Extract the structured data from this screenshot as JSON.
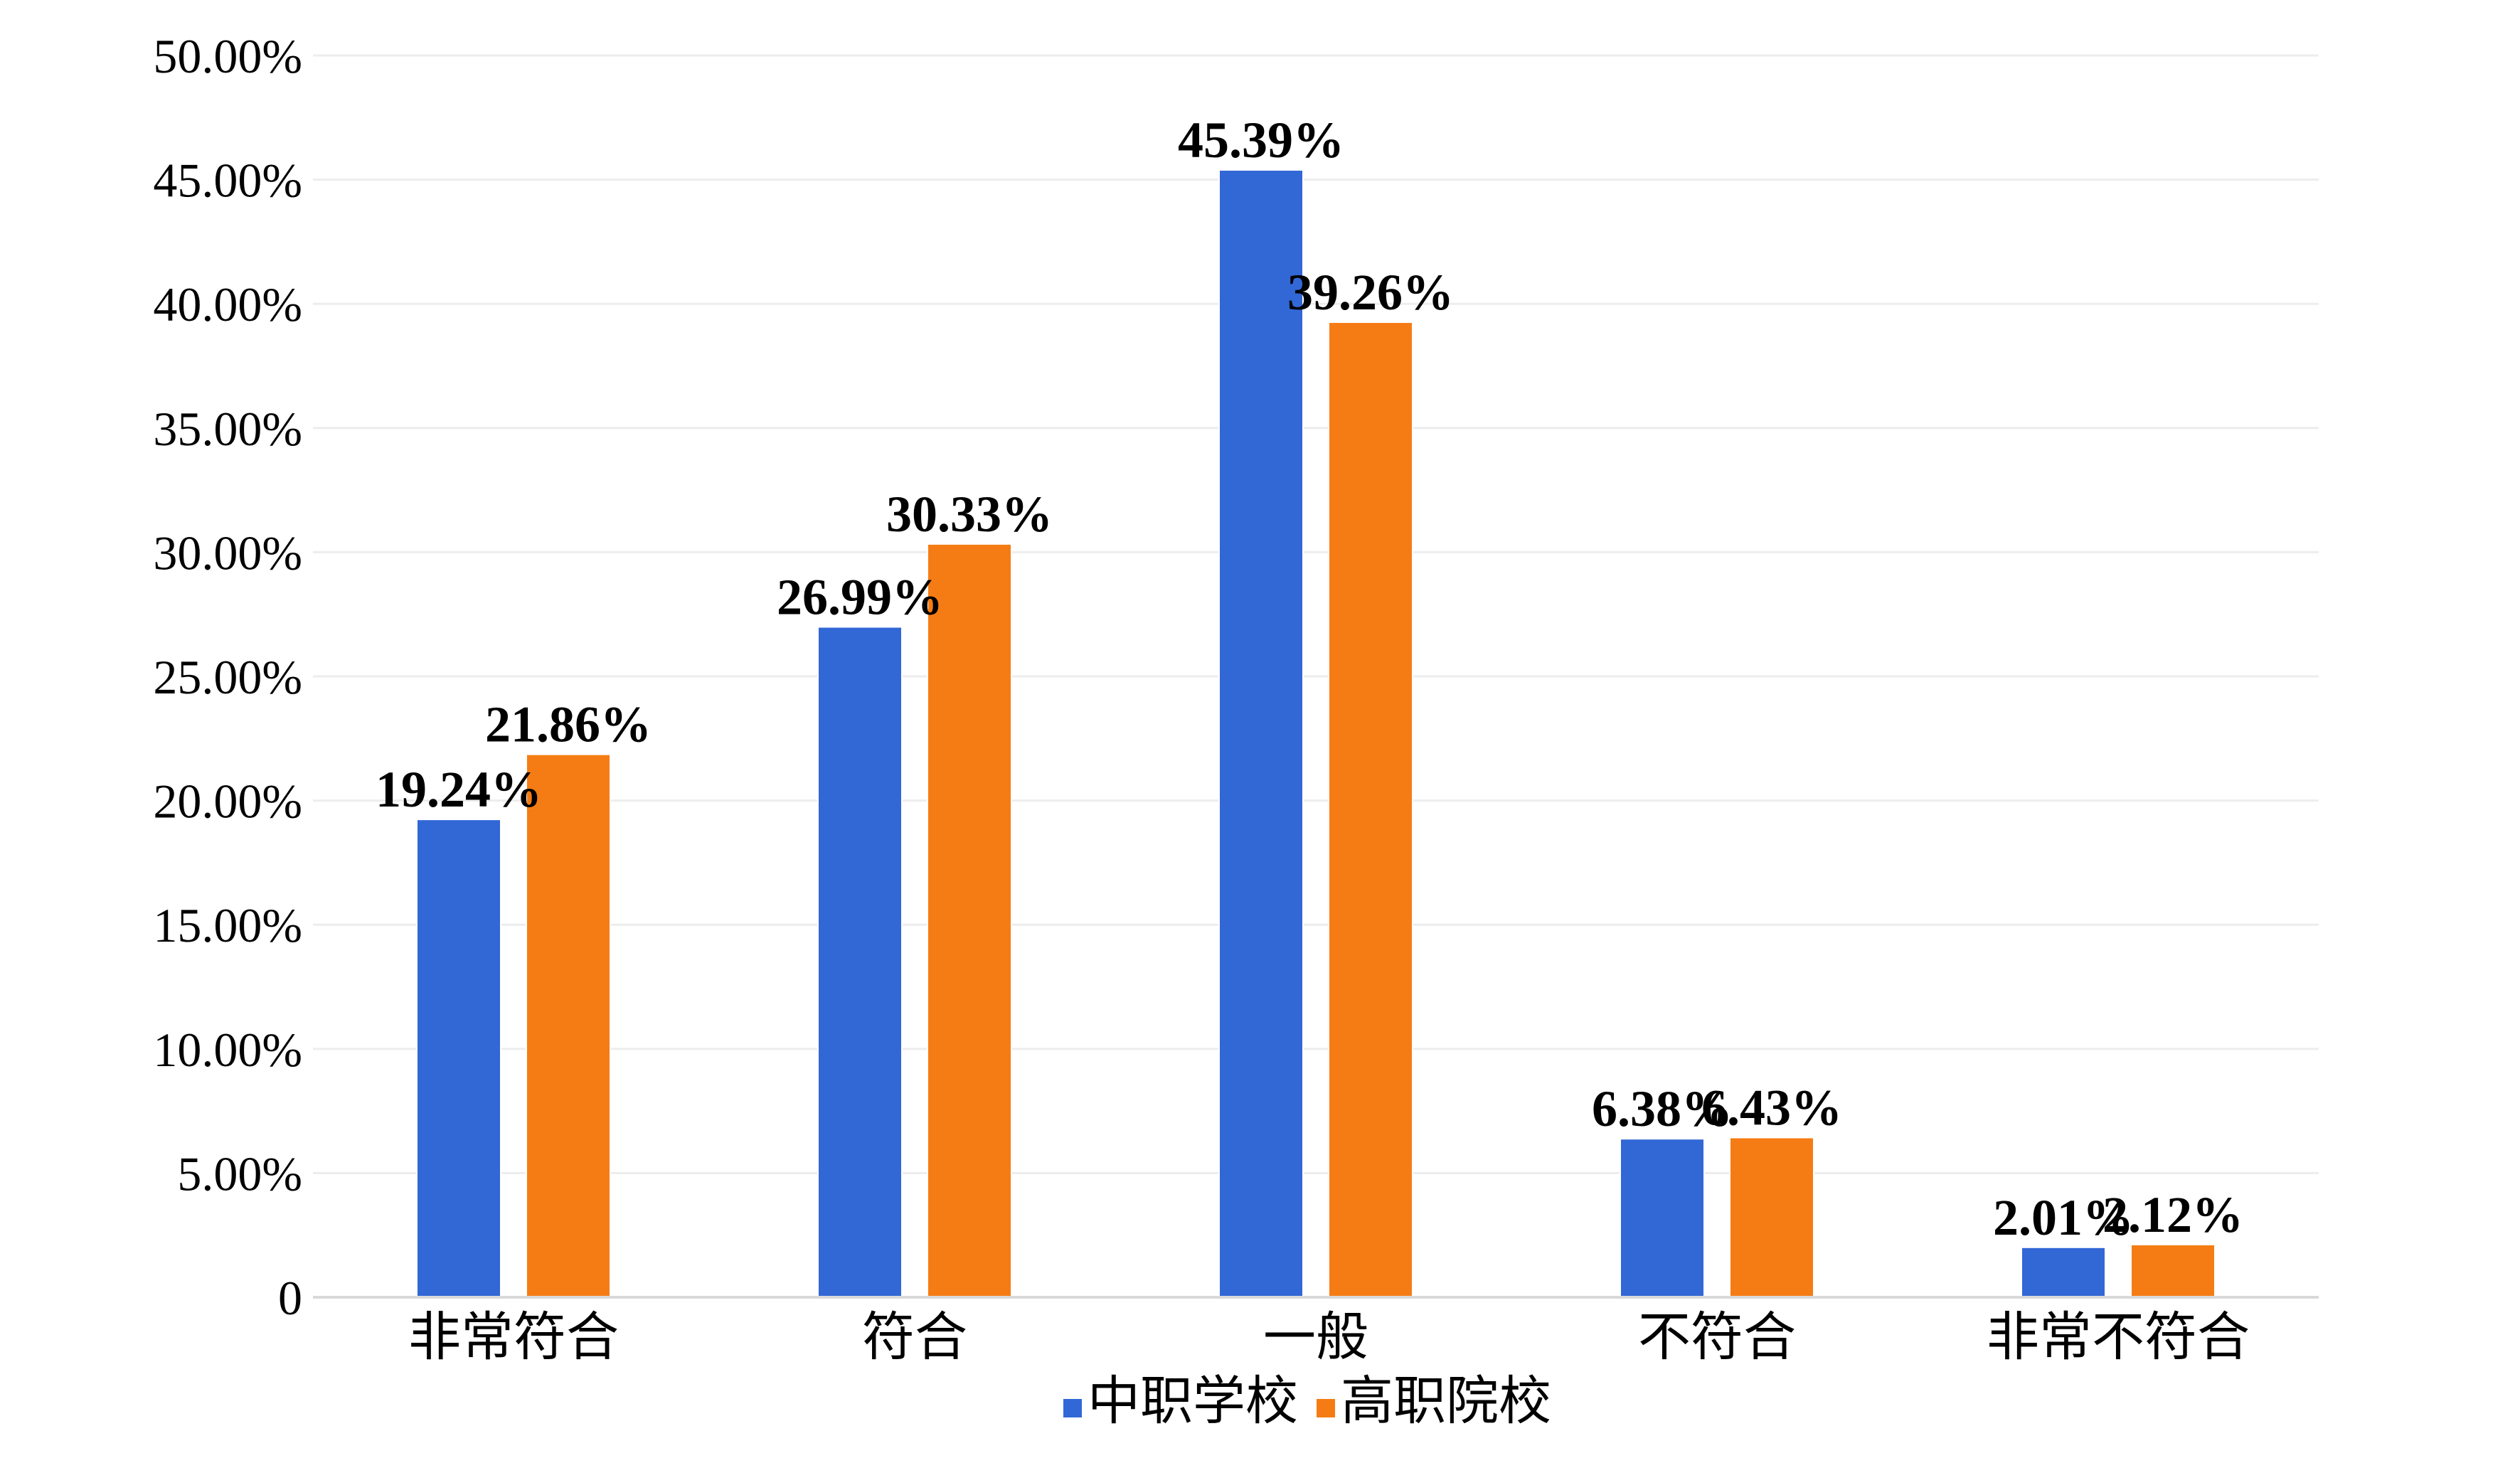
{
  "chart_data": {
    "type": "bar",
    "categories": [
      "非常符合",
      "符合",
      "一般",
      "不符合",
      "非常不符合"
    ],
    "series": [
      {
        "name": "中职学校",
        "color": "#3267D6",
        "values": [
          19.24,
          26.99,
          45.39,
          6.38,
          2.01
        ],
        "labels": [
          "19.24%",
          "26.99%",
          "45.39%",
          "6.38%",
          "2.01%"
        ]
      },
      {
        "name": "高职院校",
        "color": "#F57C14",
        "values": [
          21.86,
          30.33,
          39.26,
          6.43,
          2.12
        ],
        "labels": [
          "21.86%",
          "30.33%",
          "39.26%",
          "6.43%",
          "2.12%"
        ]
      }
    ],
    "ylim": [
      0,
      50
    ],
    "yticks": [
      0,
      5,
      10,
      15,
      20,
      25,
      30,
      35,
      40,
      45,
      50
    ],
    "ytick_labels": [
      "0",
      "5.00%",
      "10.00%",
      "15.00%",
      "20.00%",
      "25.00%",
      "30.00%",
      "35.00%",
      "40.00%",
      "45.00%",
      "50.00%"
    ],
    "grid": true,
    "legend_position": "bottom",
    "title": "",
    "xlabel": "",
    "ylabel": ""
  }
}
